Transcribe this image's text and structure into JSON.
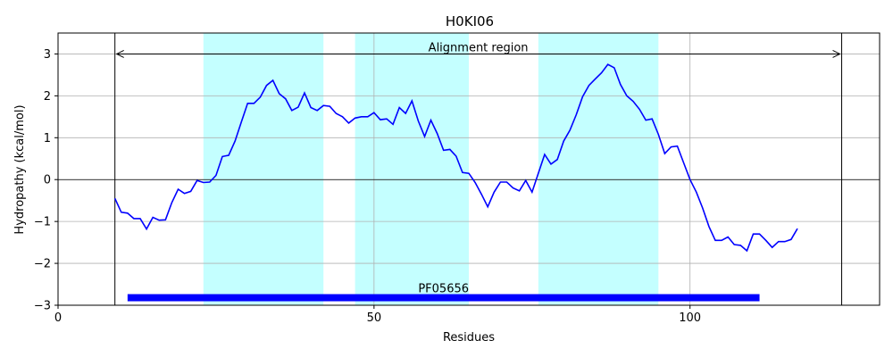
{
  "chart_data": {
    "type": "line",
    "title": "H0KI06",
    "xlabel": "Residues",
    "ylabel": "Hydropathy (kcal/mol)",
    "xlim": [
      0,
      130
    ],
    "ylim": [
      -3,
      3.5
    ],
    "xticks": [
      0,
      50,
      100
    ],
    "yticks": [
      -3,
      -2,
      -1,
      0,
      1,
      2,
      3
    ],
    "grid": true,
    "series": [
      {
        "color": "#0000ff",
        "x": [
          9,
          10,
          11,
          12,
          13,
          14,
          15,
          16,
          17,
          18,
          19,
          20,
          21,
          22,
          23,
          24,
          25,
          26,
          27,
          28,
          29,
          30,
          31,
          32,
          33,
          34,
          35,
          36,
          37,
          38,
          39,
          40,
          41,
          42,
          43,
          44,
          45,
          46,
          47,
          48,
          49,
          50,
          51,
          52,
          53,
          54,
          55,
          56,
          57,
          58,
          59,
          60,
          61,
          62,
          63,
          64,
          65,
          66,
          67,
          68,
          69,
          70,
          71,
          72,
          73,
          74,
          75,
          76,
          77,
          78,
          79,
          80,
          81,
          82,
          83,
          84,
          85,
          86,
          87,
          88,
          89,
          90,
          91,
          92,
          93,
          94,
          95,
          96,
          97,
          98,
          99,
          100,
          101,
          102,
          103,
          104,
          105,
          106,
          107,
          108,
          109,
          110,
          111,
          112,
          113,
          114,
          115,
          116,
          117
        ],
        "values": [
          -0.45,
          -0.78,
          -0.8,
          -0.93,
          -0.93,
          -1.18,
          -0.9,
          -0.97,
          -0.96,
          -0.55,
          -0.23,
          -0.33,
          -0.28,
          -0.02,
          -0.07,
          -0.06,
          0.1,
          0.55,
          0.58,
          0.92,
          1.37,
          1.82,
          1.82,
          1.97,
          2.25,
          2.37,
          2.05,
          1.93,
          1.65,
          1.73,
          2.07,
          1.72,
          1.65,
          1.77,
          1.75,
          1.58,
          1.5,
          1.35,
          1.47,
          1.5,
          1.5,
          1.6,
          1.43,
          1.45,
          1.32,
          1.72,
          1.58,
          1.88,
          1.4,
          1.03,
          1.42,
          1.1,
          0.7,
          0.72,
          0.56,
          0.17,
          0.15,
          -0.07,
          -0.35,
          -0.65,
          -0.3,
          -0.06,
          -0.06,
          -0.2,
          -0.27,
          -0.02,
          -0.3,
          0.15,
          0.6,
          0.37,
          0.48,
          0.92,
          1.18,
          1.55,
          1.98,
          2.25,
          2.4,
          2.55,
          2.75,
          2.67,
          2.27,
          2.0,
          1.87,
          1.68,
          1.42,
          1.45,
          1.08,
          0.62,
          0.78,
          0.8,
          0.4,
          0.0,
          -0.3,
          -0.68,
          -1.12,
          -1.45,
          -1.45,
          -1.37,
          -1.55,
          -1.57,
          -1.7,
          -1.3,
          -1.3,
          -1.45,
          -1.62,
          -1.48,
          -1.48,
          -1.43,
          -1.17
        ]
      }
    ],
    "shaded_regions": [
      [
        23,
        42
      ],
      [
        47,
        65
      ],
      [
        76,
        95
      ]
    ],
    "shade_color": "#c4ffff",
    "vlines": [
      9,
      124
    ],
    "hline": 0,
    "alignment_arrow": {
      "x_start": 9,
      "x_end": 124,
      "y": 3,
      "label": "Alignment region"
    },
    "domain_bar": {
      "x_start": 11,
      "x_end": 111,
      "y": -2.82,
      "label": "PF05656",
      "color": "#0000ff"
    }
  }
}
